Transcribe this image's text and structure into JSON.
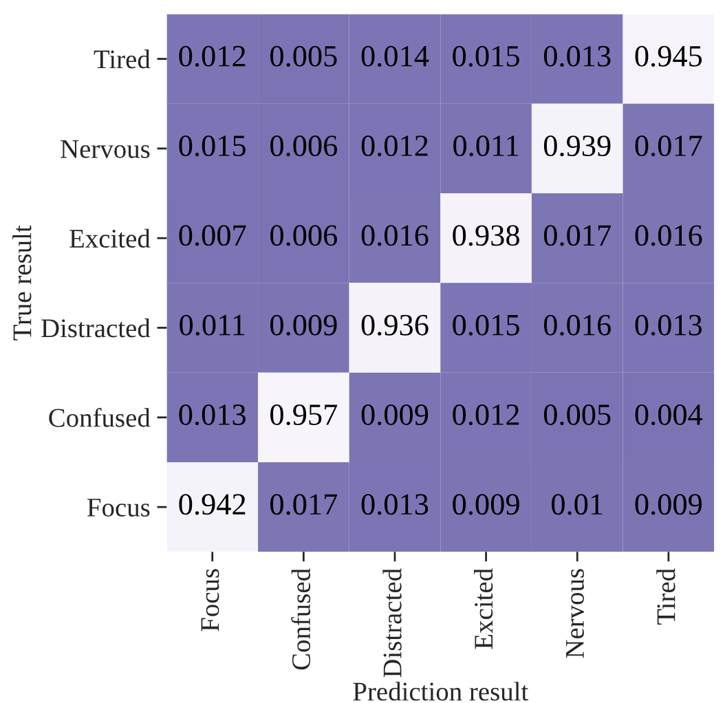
{
  "chart_data": {
    "type": "heatmap",
    "data_labels": true,
    "xlabel": "Prediction result",
    "ylabel": "True result",
    "categories": [
      "Focus",
      "Confused",
      "Distracted",
      "Excited",
      "Nervous",
      "Tired"
    ],
    "y_categories": [
      "Tired",
      "Nervous",
      "Excited",
      "Distracted",
      "Confused",
      "Focus"
    ],
    "cells": [
      [
        0.012,
        0.005,
        0.014,
        0.015,
        0.013,
        0.945
      ],
      [
        0.015,
        0.006,
        0.012,
        0.011,
        0.939,
        0.017
      ],
      [
        0.007,
        0.006,
        0.016,
        0.938,
        0.017,
        0.016
      ],
      [
        0.011,
        0.009,
        0.936,
        0.015,
        0.016,
        0.013
      ],
      [
        0.013,
        0.957,
        0.009,
        0.012,
        0.005,
        0.004
      ],
      [
        0.942,
        0.017,
        0.013,
        0.009,
        0.01,
        0.009
      ]
    ]
  }
}
